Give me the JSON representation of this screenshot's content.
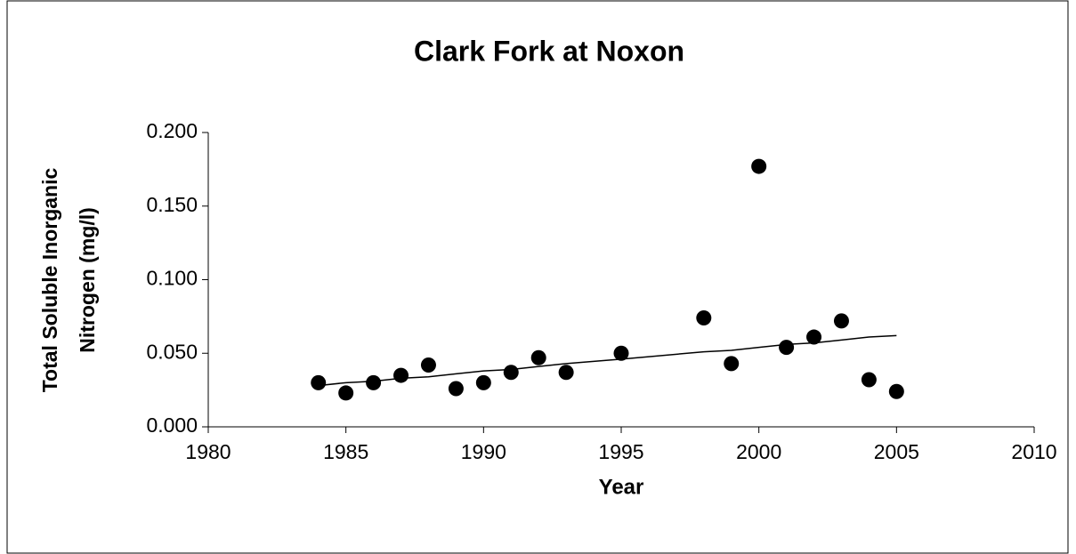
{
  "chart_data": {
    "type": "scatter",
    "title": "Clark Fork at Noxon",
    "xlabel": "Year",
    "ylabel": [
      "Total Soluble Inorganic",
      "Nitrogen (mg/l)"
    ],
    "x": [
      1984,
      1985,
      1986,
      1987,
      1988,
      1989,
      1990,
      1991,
      1992,
      1993,
      1995,
      1998,
      1999,
      2000,
      2001,
      2002,
      2003,
      2004,
      2005
    ],
    "series": [
      {
        "color": "#000000",
        "marker": "circle",
        "values": [
          0.03,
          0.023,
          0.03,
          0.035,
          0.042,
          0.026,
          0.03,
          0.037,
          0.047,
          0.037,
          0.05,
          0.074,
          0.043,
          0.177,
          0.054,
          0.061,
          0.072,
          0.032,
          0.024
        ]
      },
      {
        "color": "#000000",
        "marker": "line",
        "values": [
          0.028,
          0.03,
          0.031,
          0.033,
          0.034,
          0.036,
          0.038,
          0.039,
          0.041,
          0.043,
          0.046,
          0.051,
          0.052,
          0.054,
          0.056,
          0.057,
          0.059,
          0.061,
          0.062
        ]
      }
    ],
    "xlim": [
      1980,
      2010
    ],
    "xticks": [
      1980,
      1985,
      1990,
      1995,
      2000,
      2005,
      2010
    ],
    "ylim": [
      0,
      0.2
    ],
    "yticks": [
      {
        "value": 0,
        "label": "0.000"
      },
      {
        "value": 0.05,
        "label": "0.050"
      },
      {
        "value": 0.1,
        "label": "0.100"
      },
      {
        "value": 0.15,
        "label": "0.150"
      },
      {
        "value": 0.2,
        "label": "0.200"
      }
    ],
    "grid": false
  }
}
